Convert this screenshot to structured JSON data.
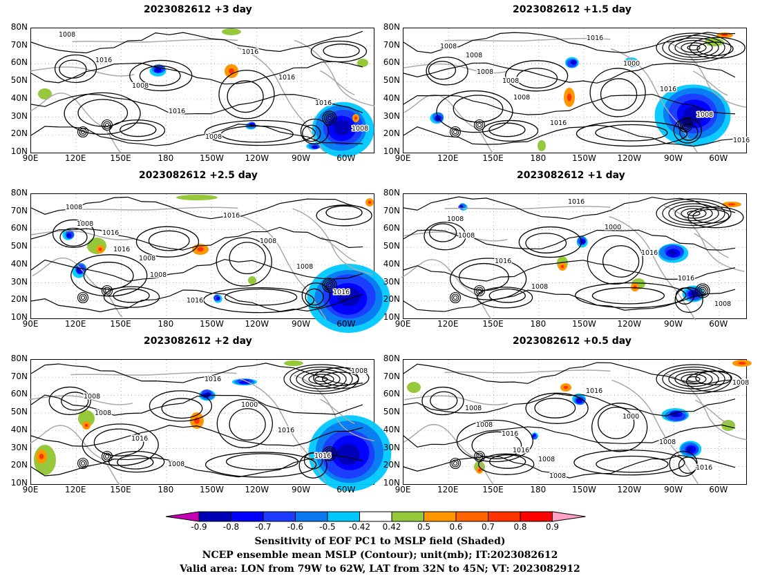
{
  "panels": [
    {
      "title": "2023082612 +3 day"
    },
    {
      "title": "2023082612 +1.5 day"
    },
    {
      "title": "2023082612 +2.5 day"
    },
    {
      "title": "2023082612 +1 day"
    },
    {
      "title": "2023082612 +2 day"
    },
    {
      "title": "2023082612 +0.5 day"
    }
  ],
  "axes": {
    "lat_ticks": [
      "80N",
      "70N",
      "60N",
      "50N",
      "40N",
      "30N",
      "20N",
      "10N"
    ],
    "lon_ticks": [
      "90E",
      "120E",
      "150E",
      "180",
      "150W",
      "120W",
      "90W",
      "60W"
    ]
  },
  "contour_labels": {
    "p0": [
      "1008",
      "1016",
      "1008",
      "1016",
      "1008",
      "1016",
      "1016",
      "1016",
      "1008"
    ],
    "p1": [
      "1008",
      "1008",
      "1008",
      "1016",
      "1016",
      "1000",
      "1016",
      "1008",
      "1016",
      "1008",
      "1008"
    ],
    "p2": [
      "1008",
      "1016",
      "1008",
      "1016",
      "1016",
      "1008",
      "1008",
      "1016",
      "1008",
      "1016",
      "1008"
    ],
    "p3": [
      "1008",
      "1016",
      "1008",
      "1016",
      "1000",
      "1016",
      "1016",
      "1008",
      "1008"
    ],
    "p4": [
      "1008",
      "1016",
      "1008",
      "1016",
      "1000",
      "1016",
      "1016",
      "1008",
      "1008"
    ],
    "p5": [
      "1008",
      "1016",
      "1008",
      "1016",
      "1000",
      "1008",
      "1016",
      "1008",
      "1008",
      "1016",
      "1008"
    ]
  },
  "colorbar": {
    "labels": [
      "-0.9",
      "-0.8",
      "-0.7",
      "-0.6",
      "-0.5",
      "-0.42",
      "0.42",
      "0.5",
      "0.6",
      "0.7",
      "0.8",
      "0.9"
    ],
    "colors": [
      "#0000b4",
      "#0000ff",
      "#1e3cff",
      "#0a78f0",
      "#00c8ff",
      "#ffffff",
      "#96c83c",
      "#ff9600",
      "#ff6400",
      "#ff3200",
      "#ff0000"
    ],
    "low_color": "#c800b4",
    "high_color": "#ffa0c8"
  },
  "captions": {
    "line1": "Sensitivity of EOF PC1 to MSLP field (Shaded)",
    "line2": "NCEP ensemble mean MSLP (Contour); unit(mb); IT:2023082612",
    "line3": "Valid area: LON from 79W to 62W, LAT from 32N to 45N; VT: 2023082912"
  }
}
